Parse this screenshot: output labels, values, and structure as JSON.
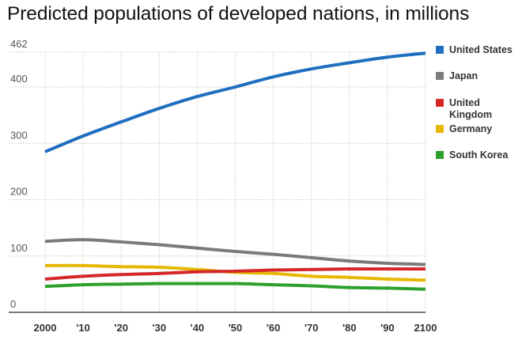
{
  "chart_data": {
    "type": "line",
    "title": "Predicted populations of developed nations, in millions",
    "xlabel": "",
    "ylabel": "",
    "x": [
      2000,
      2010,
      2020,
      2030,
      2040,
      2050,
      2060,
      2070,
      2080,
      2090,
      2100
    ],
    "x_tick_labels": [
      "2000",
      "'10",
      "'20",
      "'30",
      "'40",
      "'50",
      "'60",
      "'70",
      "'80",
      "'90",
      "2100"
    ],
    "y_ticks": [
      0,
      100,
      200,
      300,
      400,
      462
    ],
    "y_tick_labels": [
      "0",
      "100",
      "200",
      "300",
      "400",
      "462"
    ],
    "ylim": [
      0,
      462
    ],
    "xlim": [
      2000,
      2100
    ],
    "grid": true,
    "legend_position": "right",
    "series": [
      {
        "name": "United States",
        "color": "#1f6fbf",
        "values": [
          285,
          313,
          338,
          362,
          383,
          400,
          418,
          432,
          443,
          453,
          460
        ]
      },
      {
        "name": "Japan",
        "color": "#7a7a7a",
        "values": [
          126,
          129,
          125,
          120,
          114,
          108,
          103,
          97,
          91,
          87,
          85
        ]
      },
      {
        "name": "United Kingdom",
        "color": "#d62728",
        "values": [
          59,
          64,
          67,
          69,
          72,
          73,
          75,
          76,
          77,
          77,
          77
        ]
      },
      {
        "name": "Germany",
        "color": "#e6b800",
        "values": [
          83,
          83,
          81,
          80,
          76,
          71,
          69,
          64,
          62,
          59,
          57
        ]
      },
      {
        "name": "South Korea",
        "color": "#2ca02c",
        "values": [
          46,
          49,
          50,
          51,
          51,
          51,
          49,
          47,
          44,
          43,
          41
        ]
      }
    ]
  },
  "legend": {
    "items": [
      {
        "label": "United States",
        "color": "#1f6fbf"
      },
      {
        "label": "Japan",
        "color": "#7a7a7a"
      },
      {
        "label": "United Kingdom",
        "color": "#d62728"
      },
      {
        "label": "Germany",
        "color": "#e6b800"
      },
      {
        "label": "South Korea",
        "color": "#2ca02c"
      }
    ]
  }
}
